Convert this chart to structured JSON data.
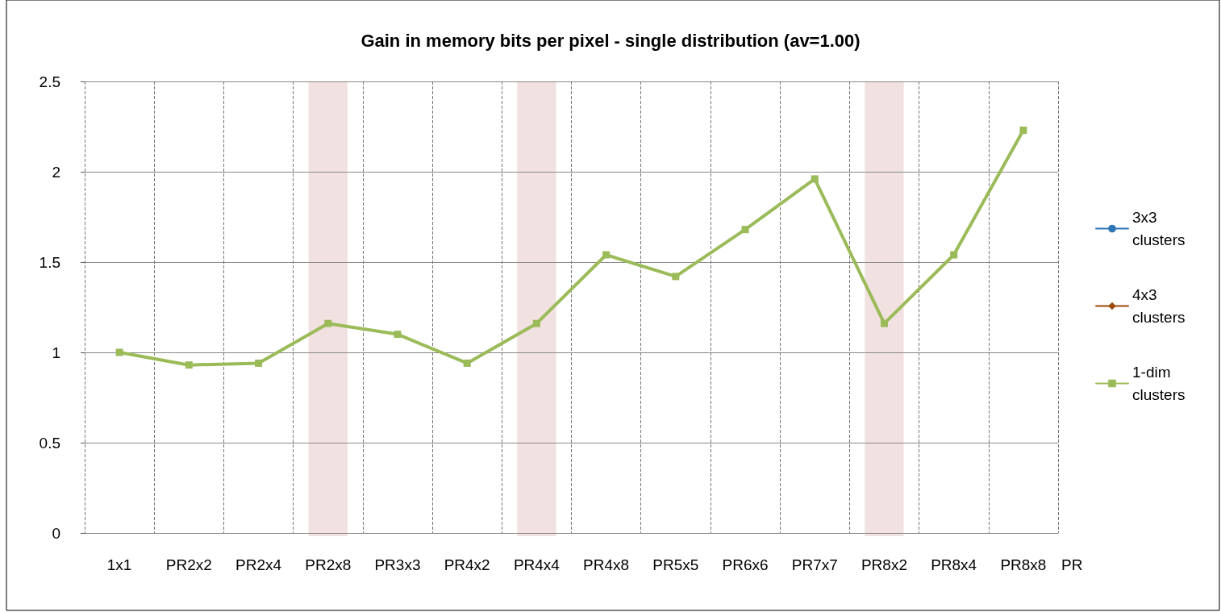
{
  "chart_data": {
    "type": "line",
    "title": "Gain in memory bits per pixel - single distribution (av=1.00)",
    "categories": [
      "1x1",
      "PR2x2",
      "PR2x4",
      "PR2x8",
      "PR3x3",
      "PR4x2",
      "PR4x4",
      "PR4x8",
      "PR5x5",
      "PR6x6",
      "PR7x7",
      "PR8x2",
      "PR8x4",
      "PR8x8"
    ],
    "series": [
      {
        "name": "3x3 clusters",
        "color": "#2e75b6",
        "marker": "circle",
        "values": [
          null,
          null,
          null,
          null,
          null,
          null,
          null,
          null,
          null,
          null,
          null,
          null,
          null,
          null
        ]
      },
      {
        "name": "4x3 clusters",
        "color": "#9c4a06",
        "marker": "diamond",
        "values": [
          null,
          null,
          null,
          null,
          null,
          null,
          null,
          null,
          null,
          null,
          null,
          null,
          null,
          null
        ]
      },
      {
        "name": "1-dim clusters",
        "color": "#9bbb59",
        "marker": "square",
        "values": [
          1.0,
          0.93,
          0.94,
          1.16,
          1.1,
          0.94,
          1.16,
          1.54,
          1.42,
          1.68,
          1.96,
          1.16,
          1.54,
          2.23
        ]
      }
    ],
    "ylim": [
      0,
      2.5
    ],
    "yticks": [
      0,
      0.5,
      1,
      1.5,
      2,
      2.5
    ],
    "grid": true,
    "legend": "right",
    "line_style": "solid",
    "bands": [
      {
        "axis": "x",
        "from": "PR2x8",
        "to": "PR2x8",
        "color": "#f2e1e1"
      },
      {
        "axis": "x",
        "from": "PR4x4",
        "to": "PR4x4",
        "color": "#f2e1e1"
      },
      {
        "axis": "x",
        "from": "PR8x2",
        "to": "PR8x2",
        "color": "#f2e1e1"
      }
    ],
    "annotations": [
      "PR"
    ]
  }
}
